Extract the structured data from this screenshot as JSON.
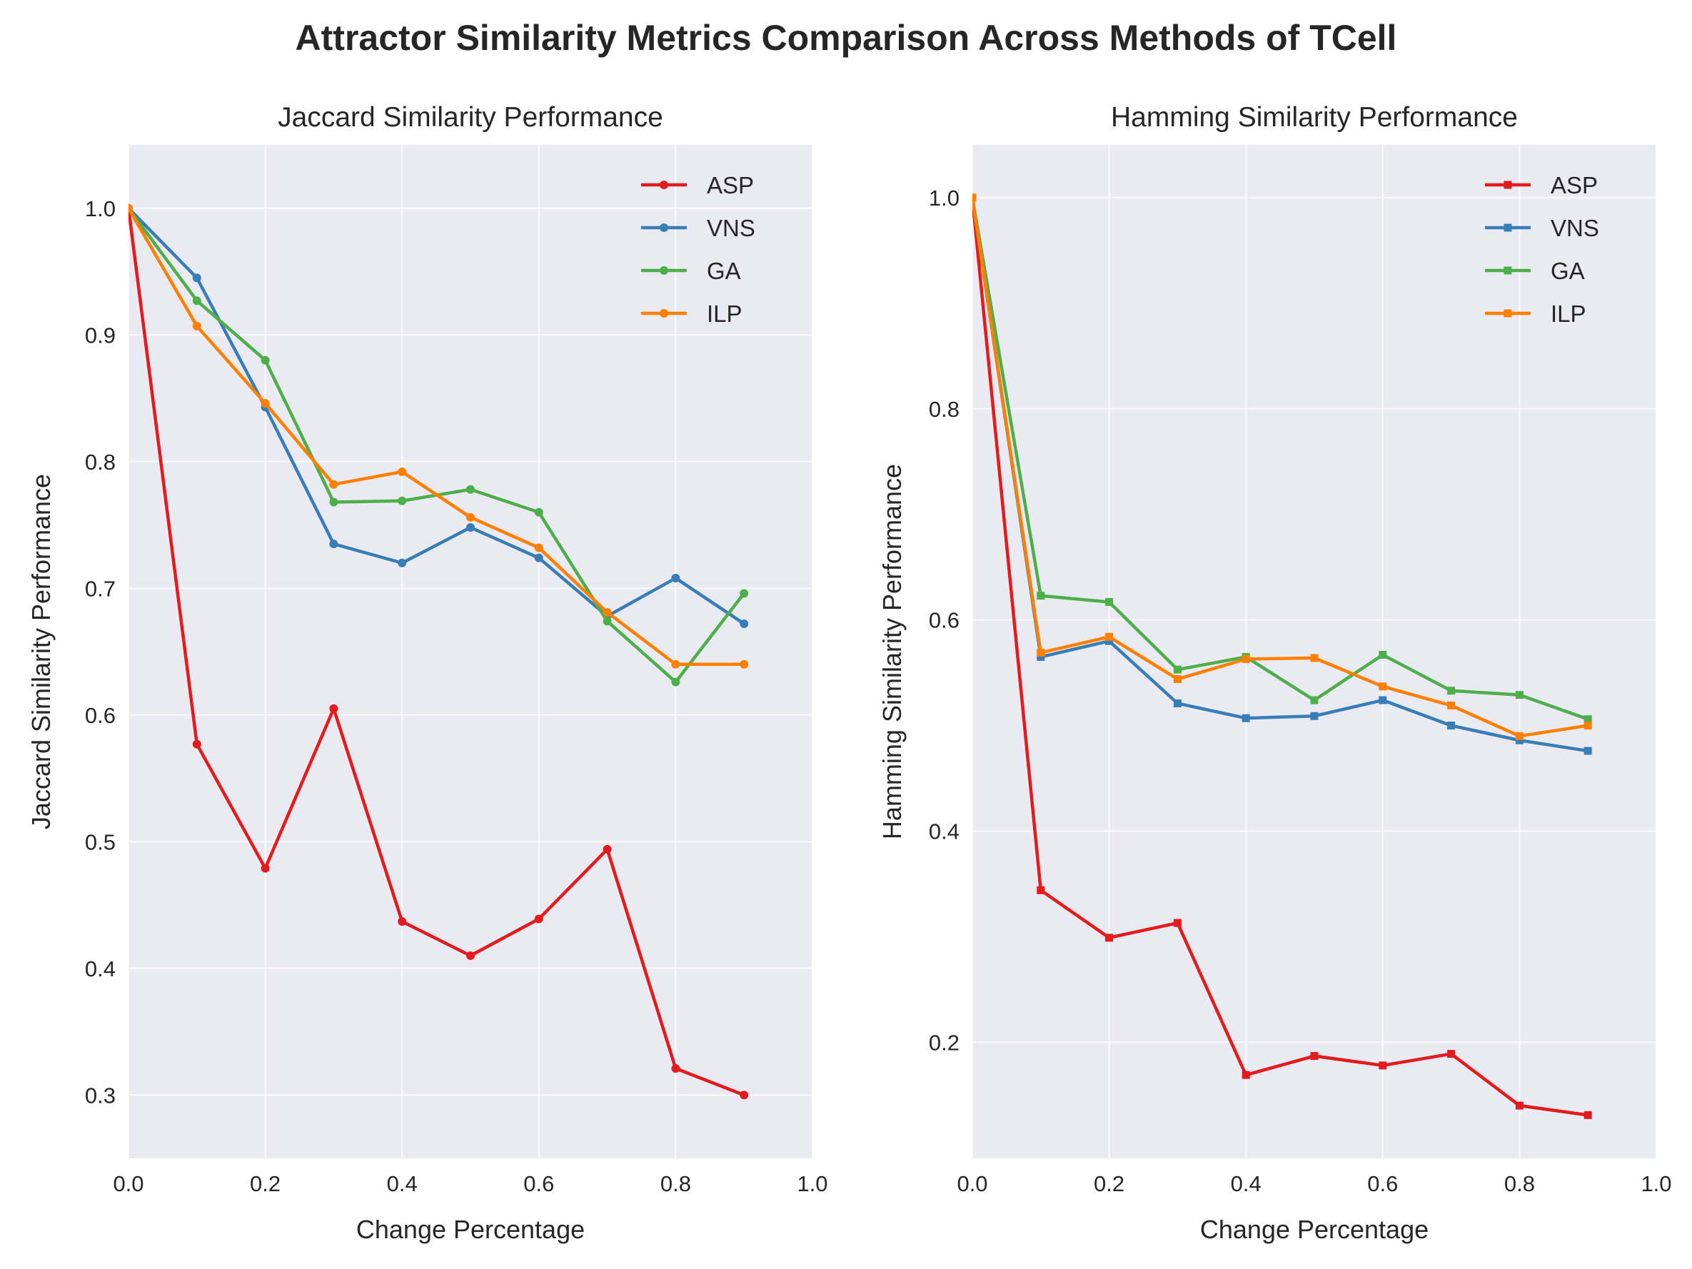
{
  "figure": {
    "suptitle": "Attractor Similarity Metrics Comparison Across Methods of TCell"
  },
  "chart_data": [
    {
      "type": "line",
      "title": "Jaccard Similarity Performance",
      "xlabel": "Change Percentage",
      "ylabel": "Jaccard Similarity Performance",
      "xlim": [
        0.0,
        1.0
      ],
      "ylim": [
        0.25,
        1.05
      ],
      "xticks": [
        "0.0",
        "0.2",
        "0.4",
        "0.6",
        "0.8",
        "1.0"
      ],
      "yticks": [
        "0.3",
        "0.4",
        "0.5",
        "0.6",
        "0.7",
        "0.8",
        "0.9",
        "1.0"
      ],
      "marker": "circle",
      "grid": true,
      "legend_position": "upper-right",
      "x": [
        0.0,
        0.1,
        0.2,
        0.3,
        0.4,
        0.5,
        0.6,
        0.7,
        0.8,
        0.9
      ],
      "series": [
        {
          "name": "ASP",
          "color": "#e41a1c",
          "values": [
            1.0,
            0.577,
            0.479,
            0.605,
            0.437,
            0.41,
            0.439,
            0.494,
            0.321,
            0.3
          ]
        },
        {
          "name": "VNS",
          "color": "#377eb8",
          "values": [
            1.0,
            0.945,
            0.843,
            0.735,
            0.72,
            0.748,
            0.724,
            0.678,
            0.708,
            0.672
          ]
        },
        {
          "name": "GA",
          "color": "#4daf4a",
          "values": [
            1.0,
            0.927,
            0.88,
            0.768,
            0.769,
            0.778,
            0.76,
            0.674,
            0.626,
            0.696
          ]
        },
        {
          "name": "ILP",
          "color": "#ff7f00",
          "values": [
            1.0,
            0.907,
            0.846,
            0.782,
            0.792,
            0.756,
            0.732,
            0.681,
            0.64,
            0.64
          ]
        }
      ]
    },
    {
      "type": "line",
      "title": "Hamming Similarity Performance",
      "xlabel": "Change Percentage",
      "ylabel": "Hamming Similarity Performance",
      "xlim": [
        0.0,
        1.0
      ],
      "ylim": [
        0.09,
        1.05
      ],
      "xticks": [
        "0.0",
        "0.2",
        "0.4",
        "0.6",
        "0.8",
        "1.0"
      ],
      "yticks": [
        "0.2",
        "0.4",
        "0.6",
        "0.8",
        "1.0"
      ],
      "marker": "square",
      "grid": true,
      "legend_position": "upper-right",
      "x": [
        0.0,
        0.1,
        0.2,
        0.3,
        0.4,
        0.5,
        0.6,
        0.7,
        0.8,
        0.9
      ],
      "series": [
        {
          "name": "ASP",
          "color": "#e41a1c",
          "values": [
            1.0,
            0.344,
            0.299,
            0.313,
            0.169,
            0.187,
            0.178,
            0.189,
            0.14,
            0.131
          ]
        },
        {
          "name": "VNS",
          "color": "#377eb8",
          "values": [
            1.0,
            0.565,
            0.58,
            0.521,
            0.507,
            0.509,
            0.524,
            0.5,
            0.486,
            0.476
          ]
        },
        {
          "name": "GA",
          "color": "#4daf4a",
          "values": [
            1.0,
            0.623,
            0.617,
            0.553,
            0.565,
            0.524,
            0.567,
            0.533,
            0.529,
            0.506
          ]
        },
        {
          "name": "ILP",
          "color": "#ff7f00",
          "values": [
            1.0,
            0.569,
            0.584,
            0.544,
            0.563,
            0.564,
            0.537,
            0.519,
            0.49,
            0.5
          ]
        }
      ]
    }
  ]
}
